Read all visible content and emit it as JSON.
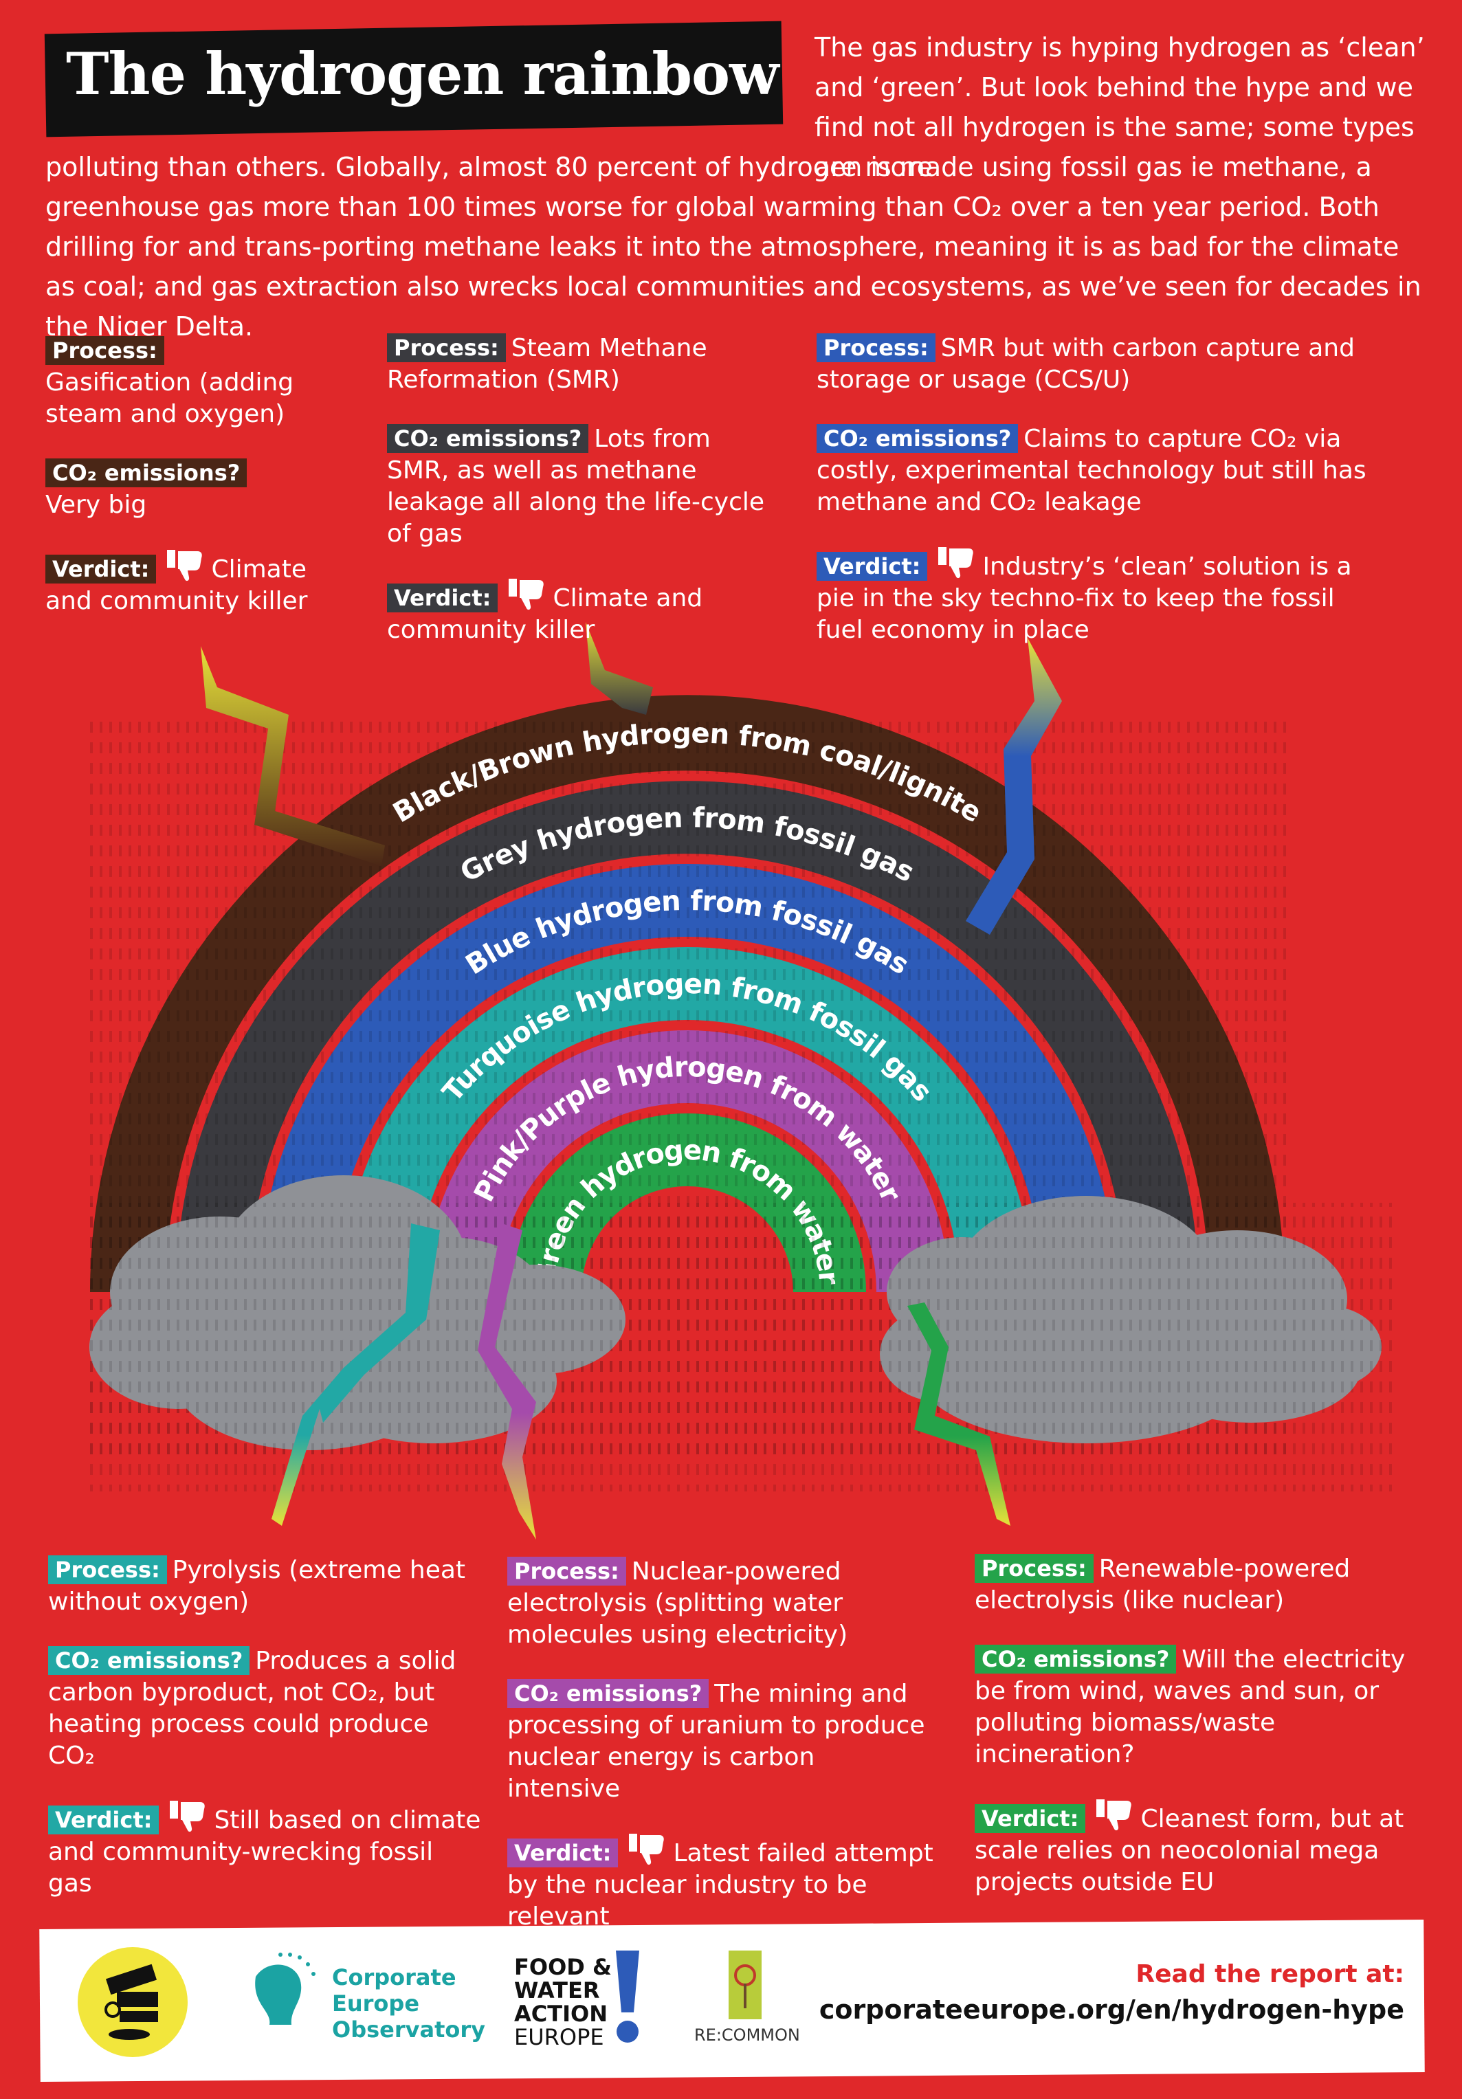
{
  "title": "The hydrogen rainbow",
  "intro": {
    "part1": "The gas industry is hyping hydrogen as ‘clean’ and ‘green’. But look behind the hype and we find not all hydrogen is the same; some types are more",
    "part2": "polluting than others. Globally, almost 80 percent of hydrogen is made using fossil gas ie methane, a greenhouse gas more than 100 times worse for global warming than CO₂ over a ten year period. Both drilling for and trans-porting methane leaks it into the atmosphere, meaning it is as bad for the climate as coal; and gas extraction also wrecks local communities and ecosystems, as we’ve seen for decades in the Niger Delta."
  },
  "labels": {
    "process": "Process:",
    "emissions": "CO₂ emissions?",
    "verdict": "Verdict:"
  },
  "colors": {
    "background": "#e0282a",
    "brown": "#4a2616",
    "grey": "#3a3a3f",
    "blue": "#2d5bb8",
    "turquoise": "#22a8a5",
    "purple": "#a54bab",
    "green": "#24a34a",
    "cloud": "#8f9196"
  },
  "arcs": [
    {
      "label": "Black/Brown hydrogen from coal/lignite",
      "color": "#4a2616"
    },
    {
      "label": "Grey hydrogen from fossil gas",
      "color": "#3a3a3f"
    },
    {
      "label": "Blue hydrogen from fossil gas",
      "color": "#2d5bb8"
    },
    {
      "label": "Turquoise hydrogen from fossil gas",
      "color": "#22a8a5"
    },
    {
      "label": "Pink/Purple hydrogen from water",
      "color": "#a54bab"
    },
    {
      "label": "Green hydrogen from water",
      "color": "#24a34a"
    }
  ],
  "panels": {
    "brown": {
      "process": "Gasification (adding steam and oxygen)",
      "emissions": "Very big",
      "verdict": "Climate and community killer",
      "verdict_icon": "thumbs-down-icon"
    },
    "grey": {
      "process": "Steam Methane Reformation (SMR)",
      "emissions": "Lots from SMR, as well as methane leakage all along the life-cycle of gas",
      "verdict": "Climate and community killer",
      "verdict_icon": "thumbs-down-icon"
    },
    "blue": {
      "process": "SMR but with carbon capture and storage or usage (CCS/U)",
      "emissions": "Claims to capture CO₂ via costly, experimental technology but still has methane and CO₂ leakage",
      "verdict": "Industry’s ‘clean’ solution is a pie in the sky techno-fix to keep the fossil fuel economy in place",
      "verdict_icon": "thumbs-down-icon"
    },
    "turquoise": {
      "process": "Pyrolysis (extreme heat without oxygen)",
      "emissions": "Produces a solid carbon byproduct, not CO₂, but heating process could produce CO₂",
      "verdict": "Still based on climate and community-wrecking fossil gas",
      "verdict_icon": "thumbs-down-icon"
    },
    "purple": {
      "process": "Nuclear-powered electrolysis (splitting water molecules using electricity)",
      "emissions": "The mining and processing of uranium to produce nuclear energy is carbon intensive",
      "verdict": "Latest failed attempt by the nuclear industry to be relevant",
      "verdict_icon": "thumbs-down-icon"
    },
    "green": {
      "process": "Renewable-powered electrolysis (like nuclear)",
      "emissions": "Will the electricity be from wind, waves and sun, or polluting biomass/waste incineration?",
      "verdict": "Cleanest form, but at scale relies on neocolonial mega projects outside EU",
      "verdict_icon": "thumbs-down-icon"
    }
  },
  "footer": {
    "logos": {
      "fossil_free": "fossil-free-politics-logo",
      "ceo": {
        "line1": "Corporate",
        "line2": "Europe",
        "line3": "Observatory"
      },
      "fwa": {
        "line1": "FOOD &",
        "line2": "WATER",
        "line3": "ACTION",
        "line4": "EUROPE"
      },
      "recommon": "RE:COMMON"
    },
    "read_label": "Read the report at:",
    "read_url": "corporateeurope.org/en/hydrogen-hype"
  }
}
